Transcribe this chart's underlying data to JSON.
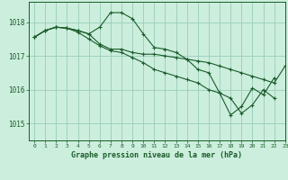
{
  "background_color": "#cceedd",
  "grid_color": "#99ccbb",
  "line_color": "#1a5c2a",
  "title": "Graphe pression niveau de la mer (hPa)",
  "xlim": [
    -0.5,
    23
  ],
  "ylim": [
    1014.5,
    1018.6
  ],
  "yticks": [
    1015,
    1016,
    1017,
    1018
  ],
  "xticks": [
    0,
    1,
    2,
    3,
    4,
    5,
    6,
    7,
    8,
    9,
    10,
    11,
    12,
    13,
    14,
    15,
    16,
    17,
    18,
    19,
    20,
    21,
    22,
    23
  ],
  "series": [
    [
      1017.55,
      1017.75,
      1017.85,
      1017.82,
      1017.75,
      1017.65,
      1017.85,
      1018.28,
      1018.28,
      1018.1,
      1017.65,
      1017.25,
      1017.2,
      1017.1,
      1016.9,
      1016.6,
      1016.5,
      1015.9,
      1015.25,
      1015.5,
      1016.05,
      1015.85,
      1016.35,
      null
    ],
    [
      1017.55,
      1017.75,
      1017.85,
      1017.82,
      1017.75,
      1017.65,
      1017.35,
      1017.2,
      1017.2,
      1017.1,
      1017.05,
      1017.05,
      1017.0,
      1016.95,
      1016.9,
      1016.85,
      1016.8,
      1016.7,
      1016.6,
      1016.5,
      1016.4,
      1016.3,
      1016.2,
      1016.7
    ],
    [
      1017.55,
      1017.75,
      1017.85,
      1017.82,
      1017.7,
      1017.5,
      1017.3,
      1017.15,
      1017.1,
      1016.95,
      1016.8,
      1016.6,
      1016.5,
      1016.4,
      1016.3,
      1016.2,
      1016.0,
      1015.9,
      1015.75,
      1015.3,
      1015.55,
      1016.0,
      1015.75,
      null
    ]
  ]
}
